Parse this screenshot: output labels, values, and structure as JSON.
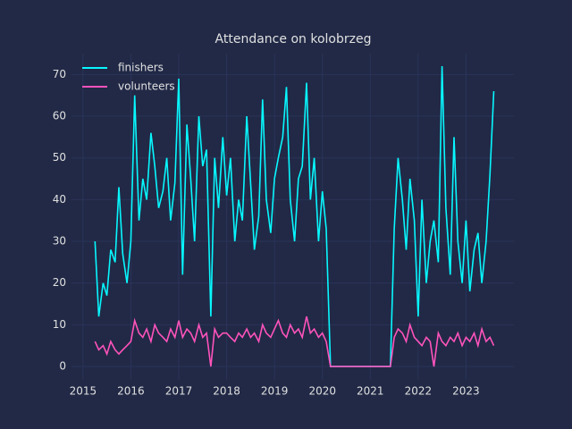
{
  "chart_data": {
    "type": "line",
    "title": "Attendance on kolobrzeg",
    "x": [
      2015.25,
      2015.33,
      2015.42,
      2015.5,
      2015.58,
      2015.67,
      2015.75,
      2015.83,
      2015.92,
      2016.0,
      2016.08,
      2016.17,
      2016.25,
      2016.33,
      2016.42,
      2016.5,
      2016.58,
      2016.67,
      2016.75,
      2016.83,
      2016.92,
      2017.0,
      2017.08,
      2017.17,
      2017.25,
      2017.33,
      2017.42,
      2017.5,
      2017.58,
      2017.67,
      2017.75,
      2017.83,
      2017.92,
      2018.0,
      2018.08,
      2018.17,
      2018.25,
      2018.33,
      2018.42,
      2018.5,
      2018.58,
      2018.67,
      2018.75,
      2018.83,
      2018.92,
      2019.0,
      2019.08,
      2019.17,
      2019.25,
      2019.33,
      2019.42,
      2019.5,
      2019.58,
      2019.67,
      2019.75,
      2019.83,
      2019.92,
      2020.0,
      2020.08,
      2020.17,
      2020.25,
      2020.33,
      2020.42,
      2020.5,
      2020.58,
      2020.67,
      2020.75,
      2020.83,
      2020.92,
      2021.0,
      2021.08,
      2021.17,
      2021.25,
      2021.33,
      2021.42,
      2021.5,
      2021.58,
      2021.67,
      2021.75,
      2021.83,
      2021.92,
      2022.0,
      2022.08,
      2022.17,
      2022.25,
      2022.33,
      2022.42,
      2022.5,
      2022.58,
      2022.67,
      2022.75,
      2022.83,
      2022.92,
      2023.0,
      2023.08,
      2023.17,
      2023.25,
      2023.33,
      2023.42,
      2023.5,
      2023.58
    ],
    "series": [
      {
        "name": "finishers",
        "color": "#08F7FE",
        "values": [
          30,
          12,
          20,
          17,
          28,
          25,
          43,
          27,
          20,
          30,
          65,
          35,
          45,
          40,
          56,
          48,
          38,
          42,
          50,
          35,
          44,
          69,
          22,
          58,
          45,
          30,
          60,
          48,
          52,
          12,
          50,
          38,
          55,
          41,
          50,
          30,
          40,
          35,
          60,
          44,
          28,
          36,
          64,
          40,
          32,
          45,
          50,
          55,
          67,
          40,
          30,
          45,
          48,
          68,
          40,
          50,
          30,
          42,
          33,
          0,
          0,
          0,
          0,
          0,
          0,
          0,
          0,
          0,
          0,
          0,
          0,
          0,
          0,
          0,
          0,
          33,
          50,
          40,
          28,
          45,
          35,
          12,
          40,
          20,
          30,
          35,
          25,
          72,
          38,
          22,
          55,
          30,
          20,
          35,
          18,
          28,
          32,
          20,
          30,
          46,
          66
        ]
      },
      {
        "name": "volunteers",
        "color": "#FE53BB",
        "values": [
          6,
          4,
          5,
          3,
          6,
          4,
          3,
          4,
          5,
          6,
          11,
          8,
          7,
          9,
          6,
          10,
          8,
          7,
          6,
          9,
          7,
          11,
          7,
          9,
          8,
          6,
          10,
          7,
          8,
          0,
          9,
          7,
          8,
          8,
          7,
          6,
          8,
          7,
          9,
          7,
          8,
          6,
          10,
          8,
          7,
          9,
          11,
          8,
          7,
          10,
          8,
          9,
          7,
          12,
          8,
          9,
          7,
          8,
          6,
          0,
          0,
          0,
          0,
          0,
          0,
          0,
          0,
          0,
          0,
          0,
          0,
          0,
          0,
          0,
          0,
          7,
          9,
          8,
          6,
          10,
          7,
          6,
          5,
          7,
          6,
          0,
          8,
          6,
          5,
          7,
          6,
          8,
          5,
          7,
          6,
          8,
          5,
          9,
          6,
          7,
          5
        ]
      }
    ],
    "xlim": [
      2014.76,
      2024.0
    ],
    "ylim": [
      -3.2,
      75
    ],
    "xticks": [
      2015,
      2016,
      2017,
      2018,
      2019,
      2020,
      2021,
      2022,
      2023
    ],
    "yticks": [
      0,
      10,
      20,
      30,
      40,
      50,
      60,
      70
    ],
    "grid": true,
    "legend": "upper left"
  }
}
